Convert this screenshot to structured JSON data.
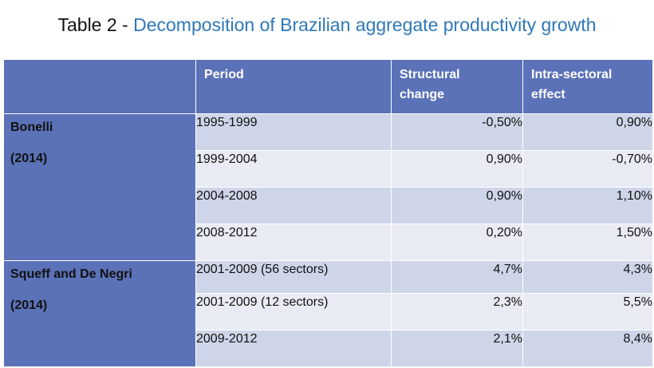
{
  "title": {
    "prefix": "Table 2 - ",
    "text": "Decomposition of Brazilian aggregate productivity growth"
  },
  "header": {
    "col1": "",
    "col2": "Period",
    "col3_line1": "Structural",
    "col3_line2": "change",
    "col4_line1": "Intra-sectoral",
    "col4_line2": "effect"
  },
  "groups": [
    {
      "author": "Bonelli",
      "year": "(2014)",
      "rows": [
        {
          "period": "1995-1999",
          "structural": "-0,50%",
          "intra": "0,90%"
        },
        {
          "period": "1999-2004",
          "structural": "0,90%",
          "intra": "-0,70%"
        },
        {
          "period": "2004-2008",
          "structural": "0,90%",
          "intra": "1,10%"
        },
        {
          "period": "2008-2012",
          "structural": "0,20%",
          "intra": "1,50%"
        }
      ]
    },
    {
      "author": "Squeff and De Negri",
      "year": "(2014)",
      "rows": [
        {
          "period": "2001-2009 (56 sectors)",
          "structural": "4,7%",
          "intra": "4,3%"
        },
        {
          "period": "2001-2009 (12 sectors)",
          "structural": "2,3%",
          "intra": "5,5%"
        },
        {
          "period": "2009-2012",
          "structural": "2,1%",
          "intra": "8,4%"
        }
      ]
    }
  ],
  "colors": {
    "header_bg": "#5b72b8",
    "row_dark": "#ced5e8",
    "row_light": "#e8ebf4",
    "title_accent": "#2f78b8"
  }
}
